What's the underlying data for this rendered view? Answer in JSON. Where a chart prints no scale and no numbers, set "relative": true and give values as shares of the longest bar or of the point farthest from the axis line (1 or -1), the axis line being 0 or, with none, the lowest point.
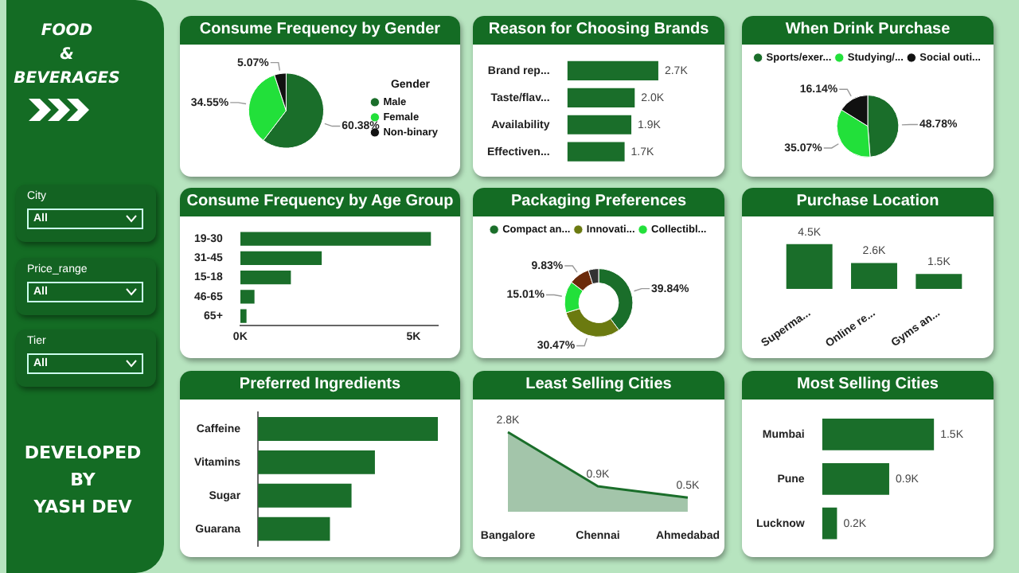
{
  "chart_data": [
    {
      "type": "other",
      "title": "FOOD\n&\nBEVERAGES",
      "annotations": [
        "City",
        "All",
        "Price_range",
        "All",
        "Tier",
        "All",
        "DEVELOPED\nBY\nYASH DEV"
      ]
    },
    {
      "type": "pie",
      "title": "Consume Frequency by Gender",
      "categories": [
        "Male",
        "Female",
        "Non-binary"
      ],
      "values": [
        60.38,
        34.55,
        5.07
      ],
      "colors": [
        "#1a6e2a",
        "#22e03a",
        "#111111"
      ],
      "value_labels": [
        "60.38%",
        "34.55%",
        "5.07%"
      ],
      "legend": "right",
      "legend_title": "Gender"
    },
    {
      "type": "bar",
      "title": "Reason for Choosing Brands",
      "orientation": "horizontal",
      "categories": [
        "Brand rep...",
        "Taste/flav...",
        "Availability",
        "Effectiven..."
      ],
      "values": [
        2700,
        2000,
        1900,
        1700
      ],
      "color": "#1a6e2a",
      "value_labels": [
        "2.7K",
        "2.0K",
        "1.9K",
        "1.7K"
      ],
      "tick_labels": "y"
    },
    {
      "type": "pie",
      "title": "When Drink Purchase",
      "categories": [
        "Sports/exer...",
        "Studying/...",
        "Social outi..."
      ],
      "values": [
        48.78,
        35.07,
        16.14
      ],
      "colors": [
        "#1a6e2a",
        "#22e03a",
        "#111111"
      ],
      "value_labels": [
        "48.78%",
        "35.07%",
        "16.14%"
      ],
      "legend": "top"
    },
    {
      "type": "bar",
      "title": "Consume Frequency by Age Group",
      "orientation": "horizontal",
      "categories": [
        "19-30",
        "31-45",
        "15-18",
        "46-65",
        "65+"
      ],
      "values": [
        5500,
        2350,
        1460,
        410,
        180
      ],
      "color": "#1a6e2a",
      "xlim": [
        0,
        5700
      ],
      "xticks": [
        {
          "value": 0,
          "label": "0K"
        },
        {
          "value": 5000,
          "label": "5K"
        }
      ]
    },
    {
      "type": "donut",
      "title": "Packaging Preferences",
      "categories": [
        "Compact an...",
        "Innovati...",
        "Collectibl...",
        null,
        null
      ],
      "values": [
        39.84,
        30.47,
        15.01,
        9.83,
        4.85
      ],
      "colors": [
        "#1a6e2a",
        "#6b7a10",
        "#22e03a",
        "#6b2a0a",
        "#333333"
      ],
      "value_labels": [
        "39.84%",
        "30.47%",
        "15.01%",
        "9.83%",
        null
      ],
      "legend": "top"
    },
    {
      "type": "bar",
      "title": "Purchase Location",
      "categories": [
        "Superma...",
        "Online re...",
        "Gyms an..."
      ],
      "values": [
        4500,
        2600,
        1500
      ],
      "color": "#1a6e2a",
      "value_labels": [
        "4.5K",
        "2.6K",
        "1.5K"
      ],
      "tick_labels": "x"
    },
    {
      "type": "bar",
      "title": "Preferred Ingredients",
      "orientation": "horizontal",
      "relative": true,
      "categories": [
        "Caffeine",
        "Vitamins",
        "Sugar",
        "Guarana"
      ],
      "values": [
        1,
        0.65,
        0.52,
        0.4
      ],
      "color": "#1a6e2a",
      "tick_labels": "y"
    },
    {
      "type": "area",
      "title": "Least Selling Cities",
      "categories": [
        "Bangalore",
        "Chennai",
        "Ahmedabad"
      ],
      "values": [
        2800,
        900,
        500
      ],
      "color": "#1a6e2a",
      "value_labels": [
        "2.8K",
        "0.9K",
        "0.5K"
      ],
      "tick_labels": "x"
    },
    {
      "type": "bar",
      "title": "Most Selling Cities",
      "orientation": "horizontal",
      "categories": [
        "Mumbai",
        "Pune",
        "Lucknow"
      ],
      "values": [
        1500,
        900,
        200
      ],
      "color": "#1a6e2a",
      "value_labels": [
        "1.5K",
        "0.9K",
        "0.2K"
      ],
      "tick_labels": "y"
    }
  ]
}
